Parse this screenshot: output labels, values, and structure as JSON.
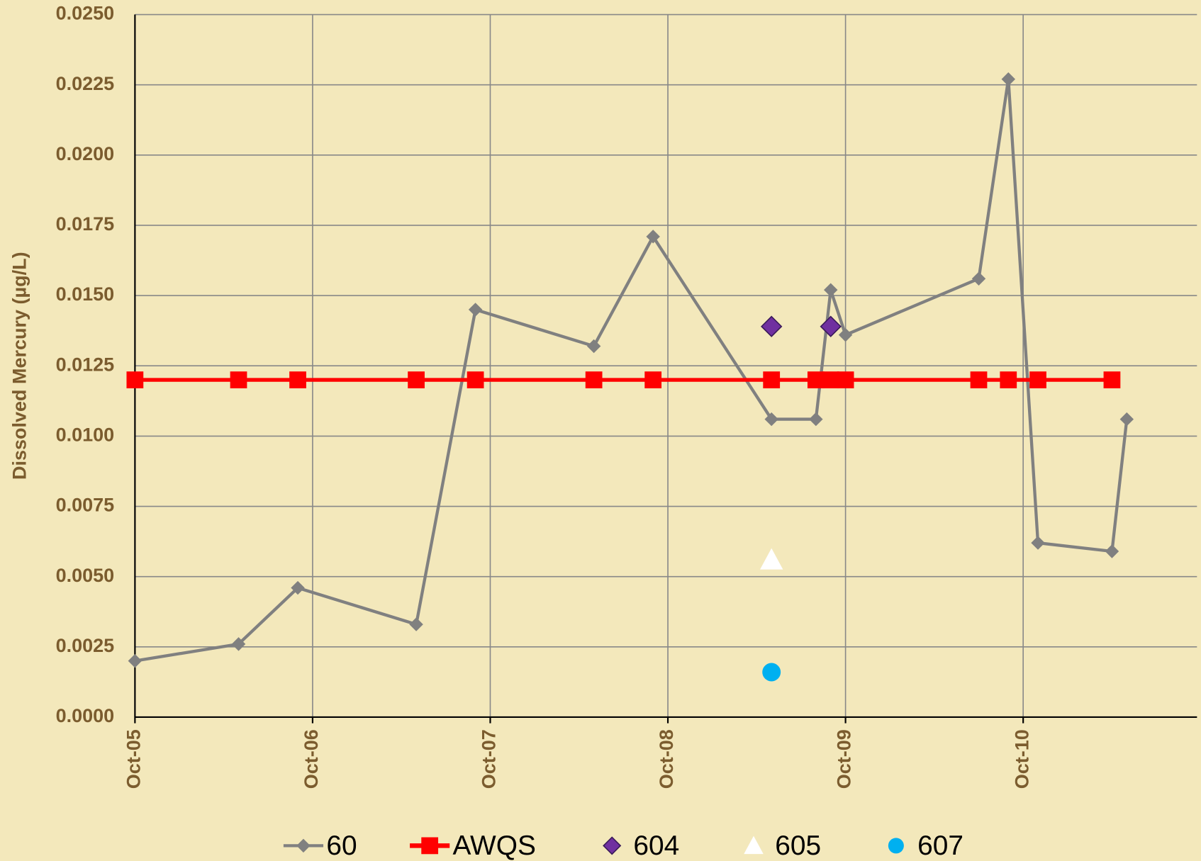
{
  "chart_data": {
    "type": "line",
    "y_label": "Dissolved Mercury (µg/L)",
    "x": [
      "2005-10",
      "2006-05",
      "2006-09",
      "2007-05",
      "2007-09",
      "2008-05",
      "2008-09",
      "2009-05",
      "2009-08",
      "2009-09",
      "2009-10",
      "2010-07",
      "2010-09",
      "2010-11",
      "2011-04",
      "2011-05"
    ],
    "series": [
      {
        "name": "60",
        "color": "#808080",
        "marker": "diamond",
        "line": true,
        "values": [
          0.002,
          0.0026,
          0.0046,
          0.0033,
          0.0145,
          0.0132,
          0.0171,
          0.0106,
          0.0106,
          0.0152,
          0.0136,
          0.0156,
          0.0227,
          0.0062,
          0.0059,
          0.0106
        ]
      },
      {
        "name": "AWQS",
        "color": "#ff0000",
        "marker": "square",
        "line": true,
        "values": [
          0.012,
          0.012,
          0.012,
          0.012,
          0.012,
          0.012,
          0.012,
          0.012,
          0.012,
          0.012,
          0.012,
          0.012,
          0.012,
          0.012,
          0.012,
          null
        ]
      },
      {
        "name": "604",
        "color": "#7030a0",
        "marker": "diamond",
        "line": false,
        "values": [
          null,
          null,
          null,
          null,
          null,
          null,
          null,
          0.0139,
          null,
          0.0139,
          null,
          null,
          null,
          null,
          null,
          null
        ]
      },
      {
        "name": "605",
        "color": "#ffffff",
        "marker": "triangle",
        "line": false,
        "values": [
          null,
          null,
          null,
          null,
          null,
          null,
          null,
          0.0056,
          null,
          null,
          null,
          null,
          null,
          null,
          null,
          null
        ]
      },
      {
        "name": "607",
        "color": "#00b0f0",
        "marker": "circle",
        "line": false,
        "values": [
          null,
          null,
          null,
          null,
          null,
          null,
          null,
          0.0016,
          null,
          null,
          null,
          null,
          null,
          null,
          null,
          null
        ]
      }
    ],
    "xlim": [
      "2005-10",
      "2011-10"
    ],
    "xticks": [
      {
        "value": "2005-10",
        "label": "Oct-05"
      },
      {
        "value": "2006-10",
        "label": "Oct-06"
      },
      {
        "value": "2007-10",
        "label": "Oct-07"
      },
      {
        "value": "2008-10",
        "label": "Oct-08"
      },
      {
        "value": "2009-10",
        "label": "Oct-09"
      },
      {
        "value": "2010-10",
        "label": "Oct-10"
      }
    ],
    "ylim": [
      0,
      0.025
    ],
    "yticks": [
      {
        "value": 0,
        "label": "0.0000"
      },
      {
        "value": 0.0025,
        "label": "0.0025"
      },
      {
        "value": 0.005,
        "label": "0.0050"
      },
      {
        "value": 0.0075,
        "label": "0.0075"
      },
      {
        "value": 0.01,
        "label": "0.0100"
      },
      {
        "value": 0.0125,
        "label": "0.0125"
      },
      {
        "value": 0.015,
        "label": "0.0150"
      },
      {
        "value": 0.0175,
        "label": "0.0175"
      },
      {
        "value": 0.02,
        "label": "0.0200"
      },
      {
        "value": 0.0225,
        "label": "0.0225"
      },
      {
        "value": 0.025,
        "label": "0.0250"
      }
    ],
    "grid": true,
    "legend": "bottom"
  }
}
